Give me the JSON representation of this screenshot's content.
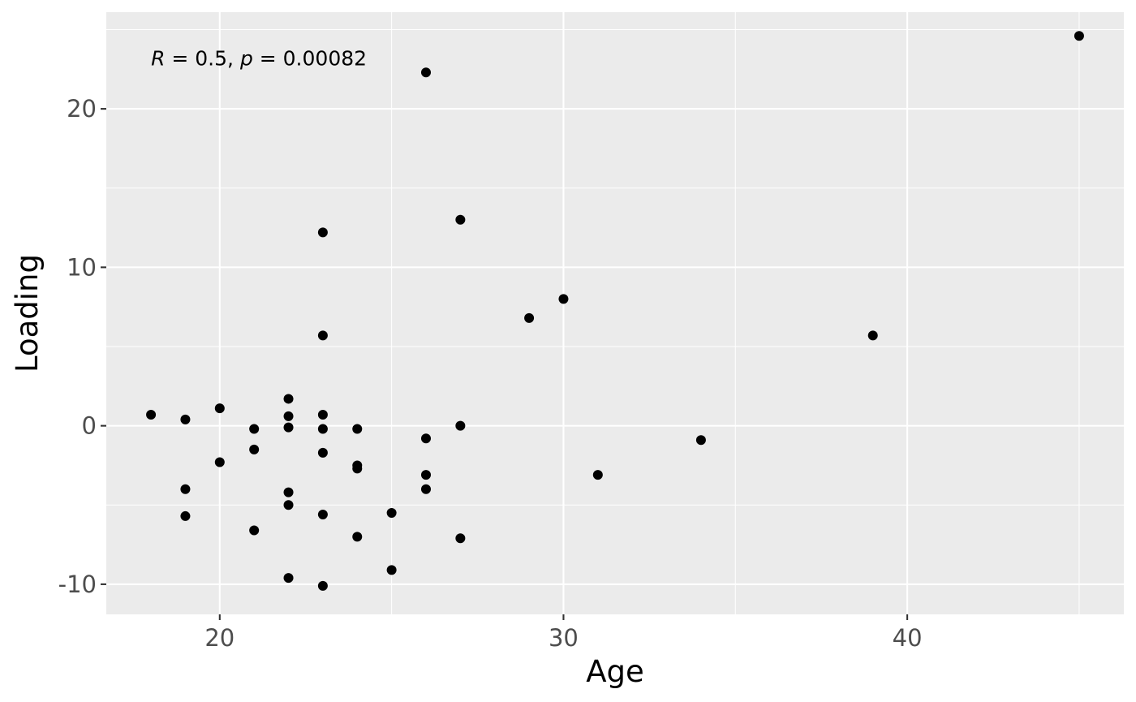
{
  "chart_data": {
    "type": "scatter",
    "xlabel": "Age",
    "ylabel": "Loading",
    "xlim": [
      16.7,
      46.3
    ],
    "ylim": [
      -11.9,
      26.1
    ],
    "x_ticks": [
      20,
      30,
      40
    ],
    "x_tick_labels": [
      "20",
      "30",
      "40"
    ],
    "y_ticks": [
      -10,
      0,
      10,
      20
    ],
    "y_tick_labels": [
      "-10",
      "0",
      "10",
      "20"
    ],
    "x_minor_ticks": [
      25,
      35,
      45
    ],
    "y_minor_ticks": [
      -5,
      5,
      15,
      25
    ],
    "grid": true,
    "legend": "none",
    "point_color": "#000000",
    "panel_color": "#ebebeb",
    "annotation": {
      "r_symbol": "R",
      "r_value": " = 0.5, ",
      "p_symbol": "p",
      "p_value": " = 0.00082",
      "x": 18,
      "y": 23.2
    },
    "points": [
      {
        "x": 18,
        "y": 0.7
      },
      {
        "x": 19,
        "y": 0.4
      },
      {
        "x": 19,
        "y": -4.0
      },
      {
        "x": 19,
        "y": -5.7
      },
      {
        "x": 20,
        "y": 1.1
      },
      {
        "x": 20,
        "y": -2.3
      },
      {
        "x": 21,
        "y": -0.2
      },
      {
        "x": 21,
        "y": -1.5
      },
      {
        "x": 21,
        "y": -6.6
      },
      {
        "x": 22,
        "y": 1.7
      },
      {
        "x": 22,
        "y": 0.6
      },
      {
        "x": 22,
        "y": -0.1
      },
      {
        "x": 22,
        "y": -4.2
      },
      {
        "x": 22,
        "y": -5.0
      },
      {
        "x": 22,
        "y": -9.6
      },
      {
        "x": 23,
        "y": 12.2
      },
      {
        "x": 23,
        "y": 5.7
      },
      {
        "x": 23,
        "y": 0.7
      },
      {
        "x": 23,
        "y": -0.2
      },
      {
        "x": 23,
        "y": -1.7
      },
      {
        "x": 23,
        "y": -5.6
      },
      {
        "x": 23,
        "y": -10.1
      },
      {
        "x": 24,
        "y": -0.2
      },
      {
        "x": 24,
        "y": -2.5
      },
      {
        "x": 24,
        "y": -2.7
      },
      {
        "x": 24,
        "y": -7.0
      },
      {
        "x": 25,
        "y": -5.5
      },
      {
        "x": 25,
        "y": -9.1
      },
      {
        "x": 26,
        "y": 22.3
      },
      {
        "x": 26,
        "y": -0.8
      },
      {
        "x": 26,
        "y": -3.1
      },
      {
        "x": 26,
        "y": -4.0
      },
      {
        "x": 27,
        "y": 13.0
      },
      {
        "x": 27,
        "y": 0.0
      },
      {
        "x": 27,
        "y": -7.1
      },
      {
        "x": 29,
        "y": 6.8
      },
      {
        "x": 30,
        "y": 8.0
      },
      {
        "x": 31,
        "y": -3.1
      },
      {
        "x": 34,
        "y": -0.9
      },
      {
        "x": 39,
        "y": 5.7
      },
      {
        "x": 45,
        "y": 24.6
      }
    ]
  }
}
